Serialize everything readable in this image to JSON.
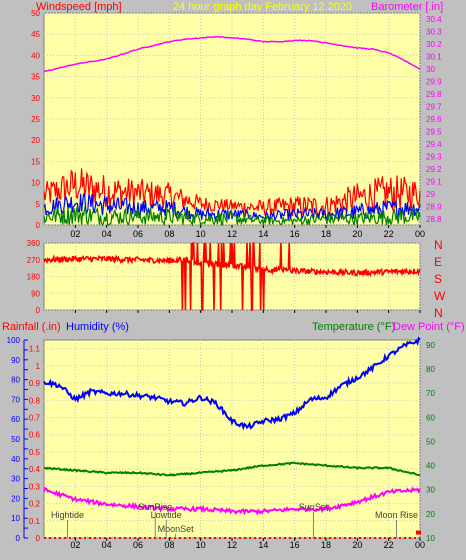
{
  "header": {
    "left_title": "Windspeed [mph]",
    "center_title": "24 hour graph day   February 12 2020",
    "right_title": "Barometer [.in]"
  },
  "colors": {
    "plot_bg": "#ffffa8",
    "frame_bg": "#c0c0c0",
    "wind_red": "#ff0000",
    "wind_blue": "#0000ff",
    "wind_green": "#008000",
    "barometer": "#ff00ff",
    "humidity": "#0000ff",
    "temperature": "#008000",
    "dewpoint": "#ff00ff",
    "rain": "#ff0000",
    "axis_left": "#ff0000",
    "grid": "#c8c8c8"
  },
  "chart_data": [
    {
      "type": "line",
      "panel": "wind-barometer",
      "x_ticks": [
        "02",
        "04",
        "06",
        "08",
        "10",
        "12",
        "14",
        "16",
        "18",
        "20",
        "22",
        "00"
      ],
      "xlim": [
        0,
        24
      ],
      "y_left": {
        "ticks": [
          0,
          5,
          10,
          15,
          20,
          25,
          30,
          35,
          40,
          45,
          50
        ],
        "lim": [
          0,
          50
        ]
      },
      "y_right": {
        "ticks": [
          "28.8",
          "28.9",
          "29",
          "29.1",
          "29.2",
          "29.3",
          "29.4",
          "29.5",
          "29.6",
          "29.7",
          "29.8",
          "29.9",
          "30",
          "30.1",
          "30.2",
          "30.3",
          "30.4"
        ],
        "lim": [
          28.75,
          30.45
        ]
      },
      "series": [
        {
          "name": "Barometer",
          "axis": "right",
          "x": [
            0,
            1,
            2,
            3,
            4,
            5,
            6,
            7,
            8,
            9,
            10,
            11,
            12,
            13,
            14,
            15,
            16,
            17,
            18,
            19,
            20,
            21,
            22,
            23,
            24
          ],
          "values": [
            29.98,
            30.01,
            30.04,
            30.06,
            30.08,
            30.12,
            30.16,
            30.19,
            30.22,
            30.24,
            30.25,
            30.26,
            30.25,
            30.24,
            30.22,
            30.22,
            30.23,
            30.23,
            30.21,
            30.19,
            30.17,
            30.16,
            30.13,
            30.07,
            30.0
          ]
        },
        {
          "name": "Wind gust",
          "axis": "left",
          "style": "noisy-band",
          "x": [
            0,
            2,
            4,
            6,
            8,
            10,
            12,
            14,
            16,
            18,
            20,
            22,
            24
          ],
          "low": [
            4,
            5,
            4,
            4,
            4,
            3,
            3,
            2,
            2,
            2,
            3,
            3,
            4
          ],
          "high": [
            10,
            14,
            12,
            11,
            10,
            7,
            6,
            6,
            7,
            7,
            10,
            12,
            11
          ]
        },
        {
          "name": "Wind average",
          "axis": "left",
          "style": "noisy-band",
          "x": [
            0,
            2,
            4,
            6,
            8,
            10,
            12,
            14,
            16,
            18,
            20,
            22,
            24
          ],
          "low": [
            2,
            3,
            2,
            2,
            2,
            1,
            1,
            1,
            1,
            1,
            1,
            2,
            2
          ],
          "high": [
            6,
            8,
            7,
            6,
            6,
            4,
            4,
            3,
            4,
            4,
            5,
            6,
            6
          ]
        },
        {
          "name": "Wind speed",
          "axis": "left",
          "style": "noisy-band",
          "x": [
            0,
            2,
            4,
            6,
            8,
            10,
            12,
            14,
            16,
            18,
            20,
            22,
            24
          ],
          "low": [
            0,
            0,
            0,
            0,
            0,
            0,
            0,
            0,
            0,
            0,
            0,
            0,
            0
          ],
          "high": [
            4,
            5,
            4,
            4,
            4,
            3,
            3,
            2,
            2,
            3,
            3,
            4,
            4
          ]
        }
      ]
    },
    {
      "type": "line",
      "panel": "wind-direction",
      "x_ticks": [
        "02",
        "04",
        "06",
        "08",
        "10",
        "12",
        "14",
        "16",
        "18",
        "20",
        "22",
        "00"
      ],
      "xlim": [
        0,
        24
      ],
      "y_left": {
        "ticks": [
          0,
          90,
          180,
          270,
          360
        ],
        "lim": [
          0,
          360
        ]
      },
      "y_right": {
        "ticks": [
          "N",
          "W",
          "S",
          "E",
          "N"
        ]
      },
      "series": [
        {
          "name": "Wind direction",
          "x": [
            0,
            2,
            4,
            6,
            8,
            9,
            10,
            12,
            14,
            16,
            18,
            20,
            22,
            24
          ],
          "values": [
            270,
            275,
            275,
            270,
            265,
            270,
            250,
            240,
            220,
            210,
            205,
            200,
            205,
            210
          ],
          "erratic_from": 8.6,
          "erratic_to": 16.1
        }
      ]
    },
    {
      "type": "line",
      "panel": "humidity-temperature",
      "x_ticks": [
        "02",
        "04",
        "06",
        "08",
        "10",
        "12",
        "14",
        "16",
        "18",
        "20",
        "22",
        "00"
      ],
      "xlim": [
        0,
        24
      ],
      "y_left_rain": {
        "label": "Rainfall (.in)",
        "ticks": [
          "0",
          "0.1",
          "0.2",
          "0.3",
          "0.4",
          "0.5",
          "0.6",
          "0.7",
          "0.8",
          "0.9",
          "1",
          "1.1"
        ],
        "lim": [
          0,
          1.15
        ]
      },
      "y_left_hum": {
        "label": "Humidity (%)",
        "ticks": [
          0,
          10,
          20,
          30,
          40,
          50,
          60,
          70,
          80,
          90,
          100
        ],
        "lim": [
          0,
          100
        ]
      },
      "y_right": {
        "label_temp": "Temperature (°F)",
        "label_dew": "Dew Point (°F)",
        "ticks": [
          10,
          20,
          30,
          40,
          50,
          60,
          70,
          80,
          90
        ],
        "lim": [
          10,
          92
        ]
      },
      "series": [
        {
          "name": "Humidity",
          "axis": "left_hum",
          "x": [
            0,
            1,
            2,
            3,
            4,
            5,
            6,
            7,
            8,
            9,
            10,
            11,
            12,
            13,
            14,
            15,
            16,
            17,
            18,
            19,
            20,
            21,
            22,
            23,
            24
          ],
          "values": [
            79,
            77,
            70,
            74,
            73,
            73,
            72,
            71,
            69,
            68,
            71,
            68,
            59,
            56,
            59,
            60,
            63,
            70,
            71,
            77,
            81,
            86,
            92,
            97,
            100
          ]
        },
        {
          "name": "Temperature",
          "axis": "right",
          "x": [
            0,
            2,
            4,
            6,
            8,
            10,
            12,
            14,
            16,
            18,
            20,
            22,
            24
          ],
          "values": [
            39,
            38,
            37,
            37,
            36,
            37,
            38,
            40,
            41,
            40,
            39,
            39,
            36
          ]
        },
        {
          "name": "Dew Point",
          "axis": "right",
          "x": [
            0,
            2,
            4,
            6,
            8,
            10,
            12,
            14,
            16,
            18,
            20,
            22,
            24
          ],
          "values": [
            30,
            26,
            24,
            23,
            22,
            22,
            21,
            21,
            22,
            22,
            25,
            29,
            30
          ]
        },
        {
          "name": "Rainfall",
          "axis": "left_rain",
          "x": [
            0,
            24
          ],
          "values": [
            0,
            0.02
          ]
        }
      ],
      "annotations": [
        {
          "text": "Hightide",
          "x": 1.5,
          "level": "top"
        },
        {
          "text": "SunRise",
          "x": 7.1,
          "level": "mid"
        },
        {
          "text": "Lowtide",
          "x": 7.8,
          "level": "top"
        },
        {
          "text": "MoonSet",
          "x": 8.4,
          "level": "bottom"
        },
        {
          "text": "SunSet",
          "x": 17.2,
          "level": "mid"
        },
        {
          "text": "Moon Rise",
          "x": 22.5,
          "level": "top"
        }
      ]
    }
  ]
}
